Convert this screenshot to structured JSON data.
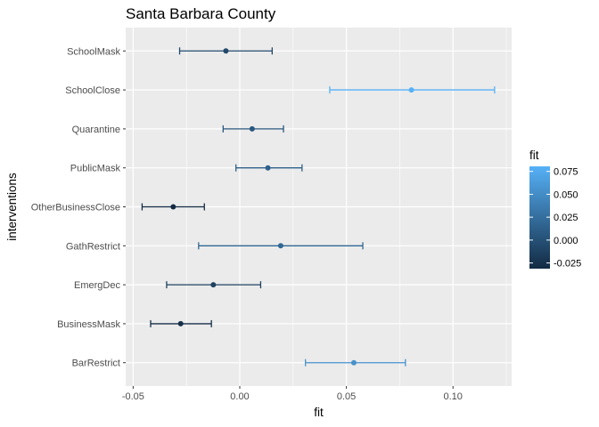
{
  "chart_data": {
    "type": "scatter",
    "subtype": "point-with-errorbars",
    "title": "Santa Barbara County",
    "xlabel": "fit",
    "ylabel": "interventions",
    "xlim": [
      -0.0535,
      0.1275
    ],
    "x_ticks": [
      -0.05,
      0.0,
      0.05,
      0.1
    ],
    "x_tick_labels": [
      "-0.05",
      "0.00",
      "0.05",
      "0.10"
    ],
    "categories": [
      "SchoolMask",
      "SchoolClose",
      "Quarantine",
      "PublicMask",
      "OtherBusinessClose",
      "GathRestrict",
      "EmergDec",
      "BusinessMask",
      "BarRestrict"
    ],
    "fit": [
      -0.0065,
      0.0805,
      0.0058,
      0.0132,
      -0.0312,
      0.0192,
      -0.0124,
      -0.0277,
      0.0535
    ],
    "lower": [
      -0.0282,
      0.0422,
      -0.0078,
      -0.0018,
      -0.0458,
      -0.0193,
      -0.0343,
      -0.0418,
      0.0308
    ],
    "upper": [
      0.0152,
      0.1195,
      0.0205,
      0.0292,
      -0.0166,
      0.0577,
      0.0098,
      -0.0133,
      0.0777
    ],
    "grid": true,
    "legend": {
      "title": "fit",
      "placement": "right",
      "ticks": [
        0.075,
        0.05,
        0.025,
        0.0,
        -0.025
      ],
      "tick_labels": [
        "0.075",
        "0.050",
        "0.025",
        "0.000",
        "-0.025"
      ],
      "range": [
        -0.0312,
        0.0805
      ],
      "color_low": "#132b43",
      "color_high": "#56b1f7"
    },
    "panel_background": "#ebebeb",
    "grid_color": "#ffffff"
  }
}
